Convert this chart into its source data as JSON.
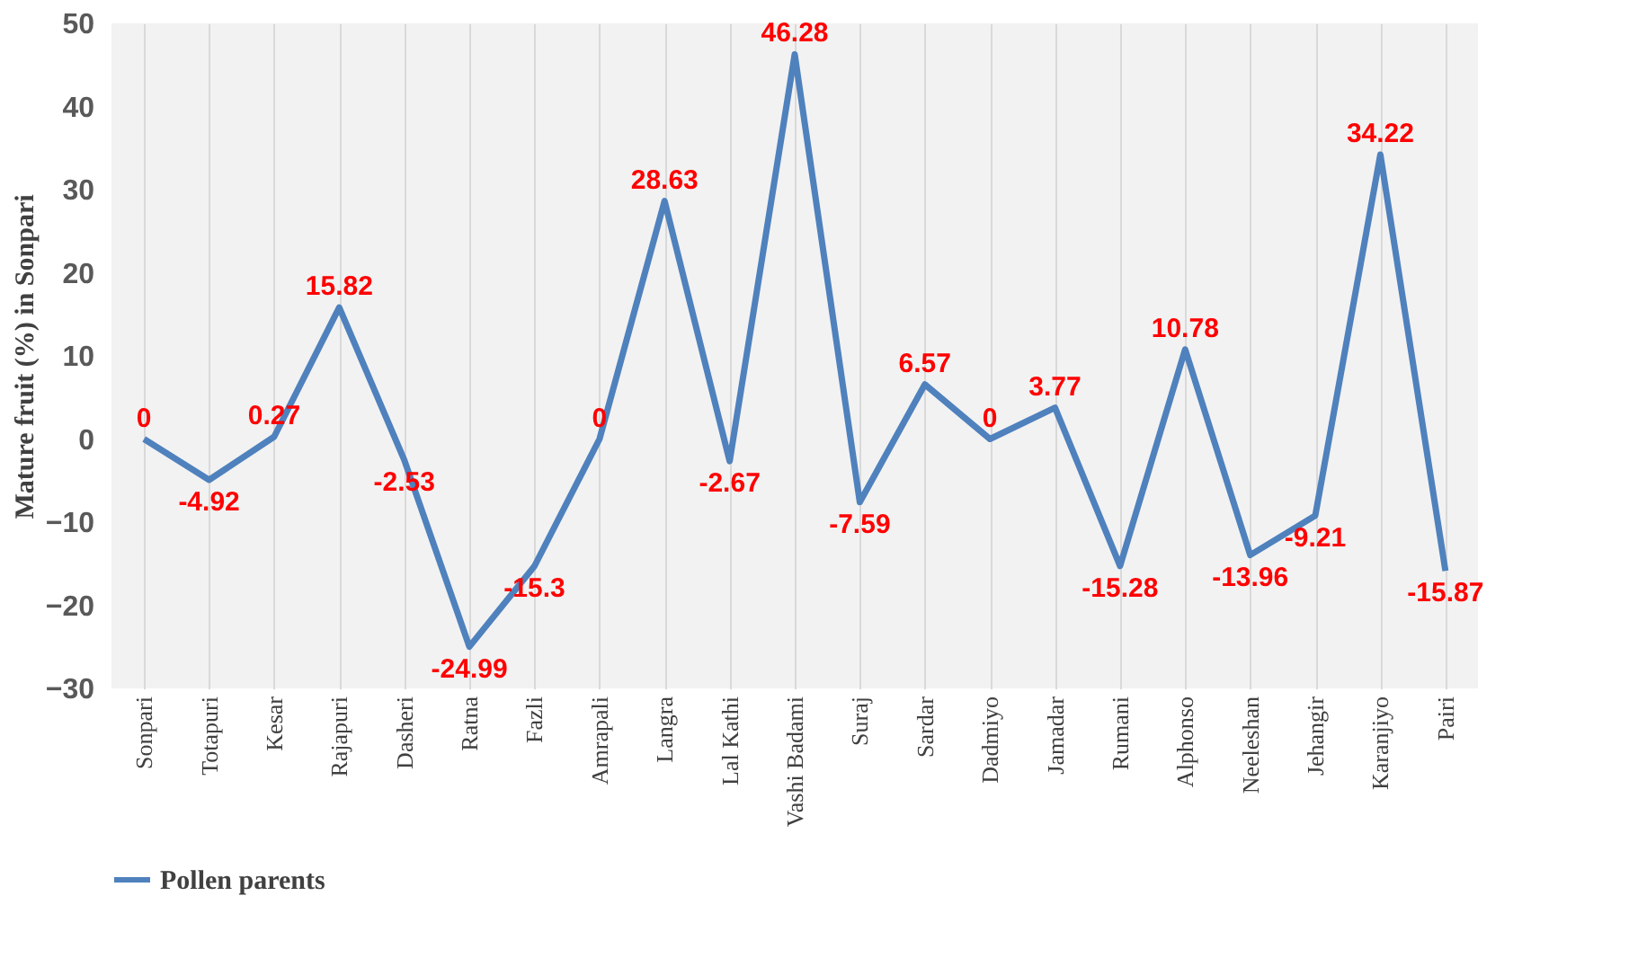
{
  "chart_data": {
    "type": "line",
    "ylabel": "Mature fruit  (%) in Sonpari",
    "categories": [
      "Sonpari",
      "Totapuri",
      "Kesar",
      "Rajapuri",
      "Dasheri",
      "Ratna",
      "Fazli",
      "Amrapali",
      "Langra",
      "Lal Kathi",
      "Vashi Badami",
      "Suraj",
      "Sardar",
      "Dadmiyo",
      "Jamadar",
      "Rumani",
      "Alphonso",
      "Neeleshan",
      "Jehangir",
      "Karanjiyo",
      "Pairi"
    ],
    "series": [
      {
        "name": "Pollen parents",
        "color": "#4f81bd",
        "values": [
          0,
          -4.92,
          0.27,
          15.82,
          -2.53,
          -24.99,
          -15.3,
          0,
          28.63,
          -2.67,
          46.28,
          -7.59,
          6.57,
          0,
          3.77,
          -15.28,
          10.78,
          -13.96,
          -9.21,
          34.22,
          -15.87
        ]
      }
    ],
    "ylim": [
      -30,
      50
    ],
    "yticks": [
      -30,
      -20,
      -10,
      0,
      10,
      20,
      30,
      40,
      50
    ],
    "grid": "x",
    "legend": "bottom",
    "data_labels": true,
    "marker": "none",
    "line_style": "solid"
  }
}
